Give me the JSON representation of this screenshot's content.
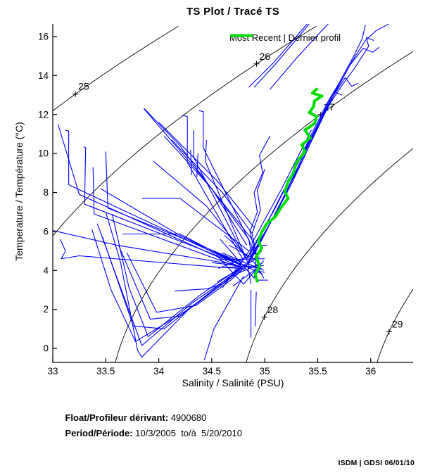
{
  "title": "TS Plot / Tracé TS",
  "legend": {
    "label": "Most Recent | Dernier profil",
    "color": "#00dd00"
  },
  "axes": {
    "x_label": "Salinity / Salinité (PSU)",
    "y_label": "Temperature / Température (°C)",
    "x_ticks": [
      "33",
      "33.5",
      "34",
      "34.5",
      "35",
      "35.5",
      "36"
    ],
    "x_tick_values": [
      33,
      33.5,
      34,
      34.5,
      35,
      35.5,
      36
    ],
    "y_ticks": [
      "0",
      "2",
      "4",
      "6",
      "8",
      "10",
      "12",
      "14",
      "16"
    ],
    "y_tick_values": [
      0,
      2,
      4,
      6,
      8,
      10,
      12,
      14,
      16
    ]
  },
  "footer": {
    "float_label": "Float/Profileur dérivant:",
    "float_value": " 4900680",
    "period_label": "Period/Période:",
    "period_value": " 10/3/2005  to/à  5/20/2010",
    "stamp": "ISDM | GDSI 06/01/10"
  },
  "chart_data": {
    "type": "line",
    "title": "TS Plot / Tracé TS",
    "xlabel": "Salinity / Salinité (PSU)",
    "ylabel": "Temperature / Température (°C)",
    "xlim": [
      33,
      36.4
    ],
    "ylim": [
      -0.72,
      16.65
    ],
    "grid": false,
    "legend_position": "top-right-inside",
    "colors": {
      "profiles": "#0000ff",
      "most_recent": "#00dd00",
      "contours": "#000000",
      "axis": "#000000"
    },
    "isopycnals": {
      "comment": "sigma-t density contours (kg/m^3 - 1000), labelled with + marker",
      "levels": [
        25,
        26,
        27,
        28,
        29
      ],
      "labels": [
        "25",
        "26",
        "27",
        "28",
        "29"
      ],
      "label_temps": [
        13.05,
        14.6,
        12.0,
        1.6,
        0.85
      ]
    },
    "most_recent_profile": {
      "name": "Most Recent | Dernier profil",
      "points": [
        [
          34.93,
          3.45
        ],
        [
          34.91,
          3.8
        ],
        [
          34.95,
          4.2
        ],
        [
          34.92,
          4.7
        ],
        [
          34.97,
          5.15
        ],
        [
          34.94,
          5.5
        ],
        [
          34.97,
          5.95
        ],
        [
          35.02,
          6.4
        ],
        [
          35.1,
          6.75
        ],
        [
          35.15,
          7.2
        ],
        [
          35.22,
          7.7
        ],
        [
          35.19,
          8.05
        ],
        [
          35.22,
          8.55
        ],
        [
          35.27,
          9.0
        ],
        [
          35.3,
          9.55
        ],
        [
          35.38,
          10.1
        ],
        [
          35.35,
          10.45
        ],
        [
          35.43,
          10.8
        ],
        [
          35.38,
          11.2
        ],
        [
          35.47,
          11.55
        ],
        [
          35.49,
          11.9
        ],
        [
          35.42,
          12.1
        ],
        [
          35.46,
          12.4
        ],
        [
          35.47,
          12.7
        ],
        [
          35.54,
          12.95
        ],
        [
          35.45,
          13.1
        ],
        [
          35.49,
          13.3
        ]
      ]
    },
    "profiles": [
      [
        [
          34.82,
          4.2
        ],
        [
          34.9,
          4.9
        ],
        [
          35.02,
          6.1
        ],
        [
          35.15,
          7.4
        ],
        [
          35.28,
          8.9
        ],
        [
          35.42,
          10.6
        ],
        [
          35.58,
          12.4
        ],
        [
          35.72,
          13.8
        ],
        [
          35.84,
          15.0
        ],
        [
          35.92,
          15.9
        ],
        [
          35.95,
          16.6
        ]
      ],
      [
        [
          34.84,
          4.4
        ],
        [
          34.97,
          5.6
        ],
        [
          35.1,
          6.9
        ],
        [
          35.24,
          8.3
        ],
        [
          35.38,
          9.9
        ],
        [
          35.52,
          11.6
        ],
        [
          35.68,
          13.3
        ],
        [
          35.82,
          14.7
        ],
        [
          35.95,
          15.8
        ],
        [
          36.05,
          16.3
        ],
        [
          36.17,
          16.65
        ]
      ],
      [
        [
          34.8,
          4.0
        ],
        [
          34.93,
          5.3
        ],
        [
          35.07,
          6.6
        ],
        [
          35.2,
          8.0
        ],
        [
          35.35,
          9.6
        ],
        [
          35.5,
          11.3
        ],
        [
          35.66,
          13.1
        ],
        [
          35.8,
          14.5
        ],
        [
          35.93,
          15.4
        ],
        [
          36.02,
          15.2
        ],
        [
          36.08,
          15.45
        ]
      ],
      [
        [
          34.83,
          4.6
        ],
        [
          34.95,
          5.8
        ],
        [
          35.08,
          7.0
        ],
        [
          35.22,
          8.5
        ],
        [
          35.36,
          10.0
        ],
        [
          35.5,
          11.5
        ],
        [
          35.63,
          12.8
        ],
        [
          35.76,
          13.9
        ],
        [
          35.82,
          13.45
        ],
        [
          35.88,
          13.6
        ]
      ],
      [
        [
          34.86,
          4.8
        ],
        [
          35.0,
          6.2
        ],
        [
          35.14,
          7.7
        ],
        [
          35.3,
          9.4
        ],
        [
          35.46,
          11.2
        ],
        [
          35.6,
          12.7
        ],
        [
          35.7,
          13.6
        ],
        [
          35.66,
          13.15
        ],
        [
          35.73,
          13.0
        ]
      ],
      [
        [
          34.81,
          4.1
        ],
        [
          34.92,
          5.0
        ],
        [
          35.05,
          6.4
        ],
        [
          35.18,
          7.8
        ],
        [
          35.33,
          9.5
        ],
        [
          35.48,
          11.2
        ],
        [
          35.62,
          12.6
        ],
        [
          35.73,
          13.5
        ],
        [
          35.85,
          14.4
        ],
        [
          35.98,
          15.5
        ],
        [
          35.96,
          15.95
        ],
        [
          36.03,
          15.8
        ]
      ],
      [
        [
          34.9,
          13.4
        ],
        [
          35.12,
          14.7
        ],
        [
          35.42,
          16.65
        ]
      ],
      [
        [
          35.05,
          13.3
        ],
        [
          35.3,
          14.9
        ],
        [
          35.52,
          16.2
        ],
        [
          35.6,
          16.65
        ]
      ],
      [
        [
          34.88,
          5.4
        ],
        [
          35.02,
          6.8
        ],
        [
          35.16,
          8.2
        ],
        [
          35.3,
          9.7
        ],
        [
          35.44,
          11.2
        ]
      ],
      [
        [
          34.87,
          3.3
        ],
        [
          34.84,
          4.2
        ],
        [
          34.9,
          5.1
        ],
        [
          34.86,
          6.0
        ],
        [
          34.93,
          7.0
        ],
        [
          34.9,
          8.0
        ],
        [
          34.98,
          9.0
        ],
        [
          34.95,
          9.9
        ],
        [
          35.05,
          10.9
        ]
      ],
      [
        [
          34.9,
          3.6
        ],
        [
          34.92,
          4.8
        ],
        [
          34.88,
          5.9
        ],
        [
          34.96,
          7.1
        ],
        [
          34.93,
          8.1
        ],
        [
          35.0,
          9.2
        ]
      ],
      [
        [
          33.12,
          11.2
        ],
        [
          33.15,
          11.15
        ],
        [
          33.15,
          8.4
        ],
        [
          34.78,
          4.25
        ]
      ],
      [
        [
          33.05,
          11.5
        ],
        [
          33.25,
          7.9
        ],
        [
          34.76,
          4.2
        ]
      ],
      [
        [
          33.29,
          10.35
        ],
        [
          33.31,
          10.3
        ],
        [
          33.3,
          7.4
        ],
        [
          34.77,
          4.3
        ]
      ],
      [
        [
          33.38,
          9.3
        ],
        [
          33.39,
          6.9
        ],
        [
          34.76,
          4.15
        ]
      ],
      [
        [
          33.5,
          10.1
        ],
        [
          33.52,
          7.2
        ],
        [
          34.79,
          4.4
        ]
      ],
      [
        [
          33.45,
          8.2
        ],
        [
          34.2,
          5.8
        ],
        [
          34.78,
          4.3
        ]
      ],
      [
        [
          33.07,
          5.6
        ],
        [
          33.12,
          5.0
        ],
        [
          33.08,
          4.6
        ],
        [
          33.25,
          4.75
        ],
        [
          34.6,
          4.15
        ],
        [
          34.8,
          4.1
        ]
      ],
      [
        [
          33.0,
          6.05
        ],
        [
          33.6,
          5.3
        ],
        [
          34.72,
          4.3
        ]
      ],
      [
        [
          33.66,
          5.87
        ],
        [
          34.2,
          5.87
        ],
        [
          34.72,
          4.4
        ]
      ],
      [
        [
          33.84,
          7.7
        ],
        [
          34.2,
          7.7
        ],
        [
          34.85,
          5.0
        ]
      ],
      [
        [
          33.86,
          12.32
        ],
        [
          34.2,
          10.4
        ],
        [
          34.85,
          5.6
        ],
        [
          34.88,
          4.6
        ]
      ],
      [
        [
          34.22,
          11.95
        ],
        [
          34.27,
          11.9
        ],
        [
          34.27,
          9.55
        ],
        [
          34.8,
          4.5
        ]
      ],
      [
        [
          34.33,
          11.2
        ],
        [
          34.33,
          9.8
        ],
        [
          34.82,
          4.6
        ]
      ],
      [
        [
          34.45,
          10.7
        ],
        [
          34.44,
          9.6
        ],
        [
          34.84,
          4.4
        ]
      ],
      [
        [
          34.05,
          10.9
        ],
        [
          34.5,
          8.2
        ],
        [
          34.83,
          5.3
        ]
      ],
      [
        [
          33.95,
          9.6
        ],
        [
          34.45,
          7.3
        ],
        [
          34.8,
          4.9
        ]
      ],
      [
        [
          34.38,
          12.2
        ],
        [
          34.42,
          12.15
        ],
        [
          34.42,
          10.3
        ],
        [
          34.72,
          7.0
        ],
        [
          34.9,
          5.0
        ]
      ],
      [
        [
          34.3,
          10.2
        ],
        [
          34.31,
          8.9
        ]
      ],
      [
        [
          34.37,
          10.0
        ],
        [
          34.36,
          8.8
        ]
      ],
      [
        [
          33.86,
          12.3
        ],
        [
          34.35,
          9.2
        ],
        [
          34.88,
          5.6
        ]
      ],
      [
        [
          34.0,
          11.6
        ],
        [
          34.55,
          8.6
        ],
        [
          34.9,
          6.2
        ]
      ],
      [
        [
          34.12,
          10.7
        ],
        [
          34.6,
          8.0
        ],
        [
          34.88,
          5.9
        ]
      ],
      [
        [
          34.85,
          13.4
        ],
        [
          35.09,
          14.7
        ],
        [
          35.4,
          16.65
        ]
      ],
      [
        [
          33.5,
          7.0
        ],
        [
          33.64,
          4.4
        ],
        [
          33.8,
          -0.1
        ],
        [
          33.84,
          -0.45
        ],
        [
          34.3,
          2.1
        ],
        [
          34.79,
          4.05
        ]
      ],
      [
        [
          33.42,
          6.4
        ],
        [
          33.6,
          3.7
        ],
        [
          33.84,
          0.15
        ],
        [
          34.32,
          2.35
        ],
        [
          34.8,
          4.15
        ]
      ],
      [
        [
          33.56,
          6.9
        ],
        [
          33.72,
          3.1
        ],
        [
          33.9,
          0.6
        ],
        [
          34.38,
          2.7
        ],
        [
          34.81,
          4.3
        ]
      ],
      [
        [
          33.47,
          5.7
        ],
        [
          33.76,
          1.15
        ],
        [
          34.05,
          1.0
        ],
        [
          34.5,
          2.95
        ],
        [
          34.82,
          4.35
        ]
      ],
      [
        [
          33.62,
          5.3
        ],
        [
          33.92,
          1.5
        ],
        [
          34.2,
          1.65
        ],
        [
          34.6,
          3.3
        ],
        [
          34.8,
          4.25
        ]
      ],
      [
        [
          33.37,
          6.1
        ],
        [
          33.55,
          3.0
        ],
        [
          33.78,
          0.35
        ],
        [
          34.25,
          1.9
        ],
        [
          34.78,
          4.0
        ]
      ],
      [
        [
          33.7,
          4.9
        ],
        [
          33.98,
          1.85
        ],
        [
          34.35,
          2.2
        ],
        [
          34.68,
          3.5
        ],
        [
          34.8,
          4.1
        ]
      ],
      [
        [
          34.8,
          3.7
        ],
        [
          34.52,
          1.0
        ],
        [
          34.43,
          -0.6
        ]
      ],
      [
        [
          34.87,
          3.0
        ],
        [
          34.87,
          0.55
        ]
      ],
      [
        [
          34.92,
          2.9
        ],
        [
          34.91,
          1.15
        ]
      ],
      [
        [
          34.15,
          2.95
        ],
        [
          34.45,
          3.05
        ],
        [
          34.6,
          3.3
        ]
      ],
      [
        [
          34.52,
          5.0
        ],
        [
          34.98,
          3.8
        ]
      ],
      [
        [
          34.55,
          3.4
        ],
        [
          34.95,
          4.7
        ]
      ],
      [
        [
          34.5,
          4.4
        ],
        [
          34.97,
          4.1
        ]
      ],
      [
        [
          34.58,
          5.6
        ],
        [
          34.9,
          3.6
        ]
      ],
      [
        [
          34.6,
          3.1
        ],
        [
          34.88,
          5.2
        ]
      ],
      [
        [
          34.54,
          4.8
        ],
        [
          34.8,
          3.3
        ],
        [
          34.99,
          4.5
        ]
      ],
      [
        [
          34.62,
          5.8
        ],
        [
          34.92,
          4.3
        ],
        [
          34.99,
          3.6
        ]
      ],
      [
        [
          34.56,
          4.1
        ],
        [
          34.93,
          4.9
        ]
      ],
      [
        [
          34.64,
          3.6
        ],
        [
          34.96,
          4.35
        ]
      ],
      [
        [
          34.6,
          4.9
        ],
        [
          34.99,
          4.0
        ]
      ],
      [
        [
          34.66,
          5.3
        ],
        [
          34.9,
          4.6
        ],
        [
          34.97,
          5.0
        ]
      ],
      [
        [
          34.7,
          3.2
        ],
        [
          34.9,
          4.0
        ],
        [
          35.0,
          3.9
        ]
      ],
      [
        [
          34.93,
          3.5
        ],
        [
          35.03,
          3.5
        ]
      ],
      [
        [
          34.95,
          5.25
        ],
        [
          35.02,
          5.3
        ]
      ],
      [
        [
          34.58,
          4.55
        ],
        [
          35.0,
          4.6
        ]
      ],
      [
        [
          34.62,
          4.15
        ],
        [
          34.99,
          4.25
        ]
      ]
    ]
  }
}
